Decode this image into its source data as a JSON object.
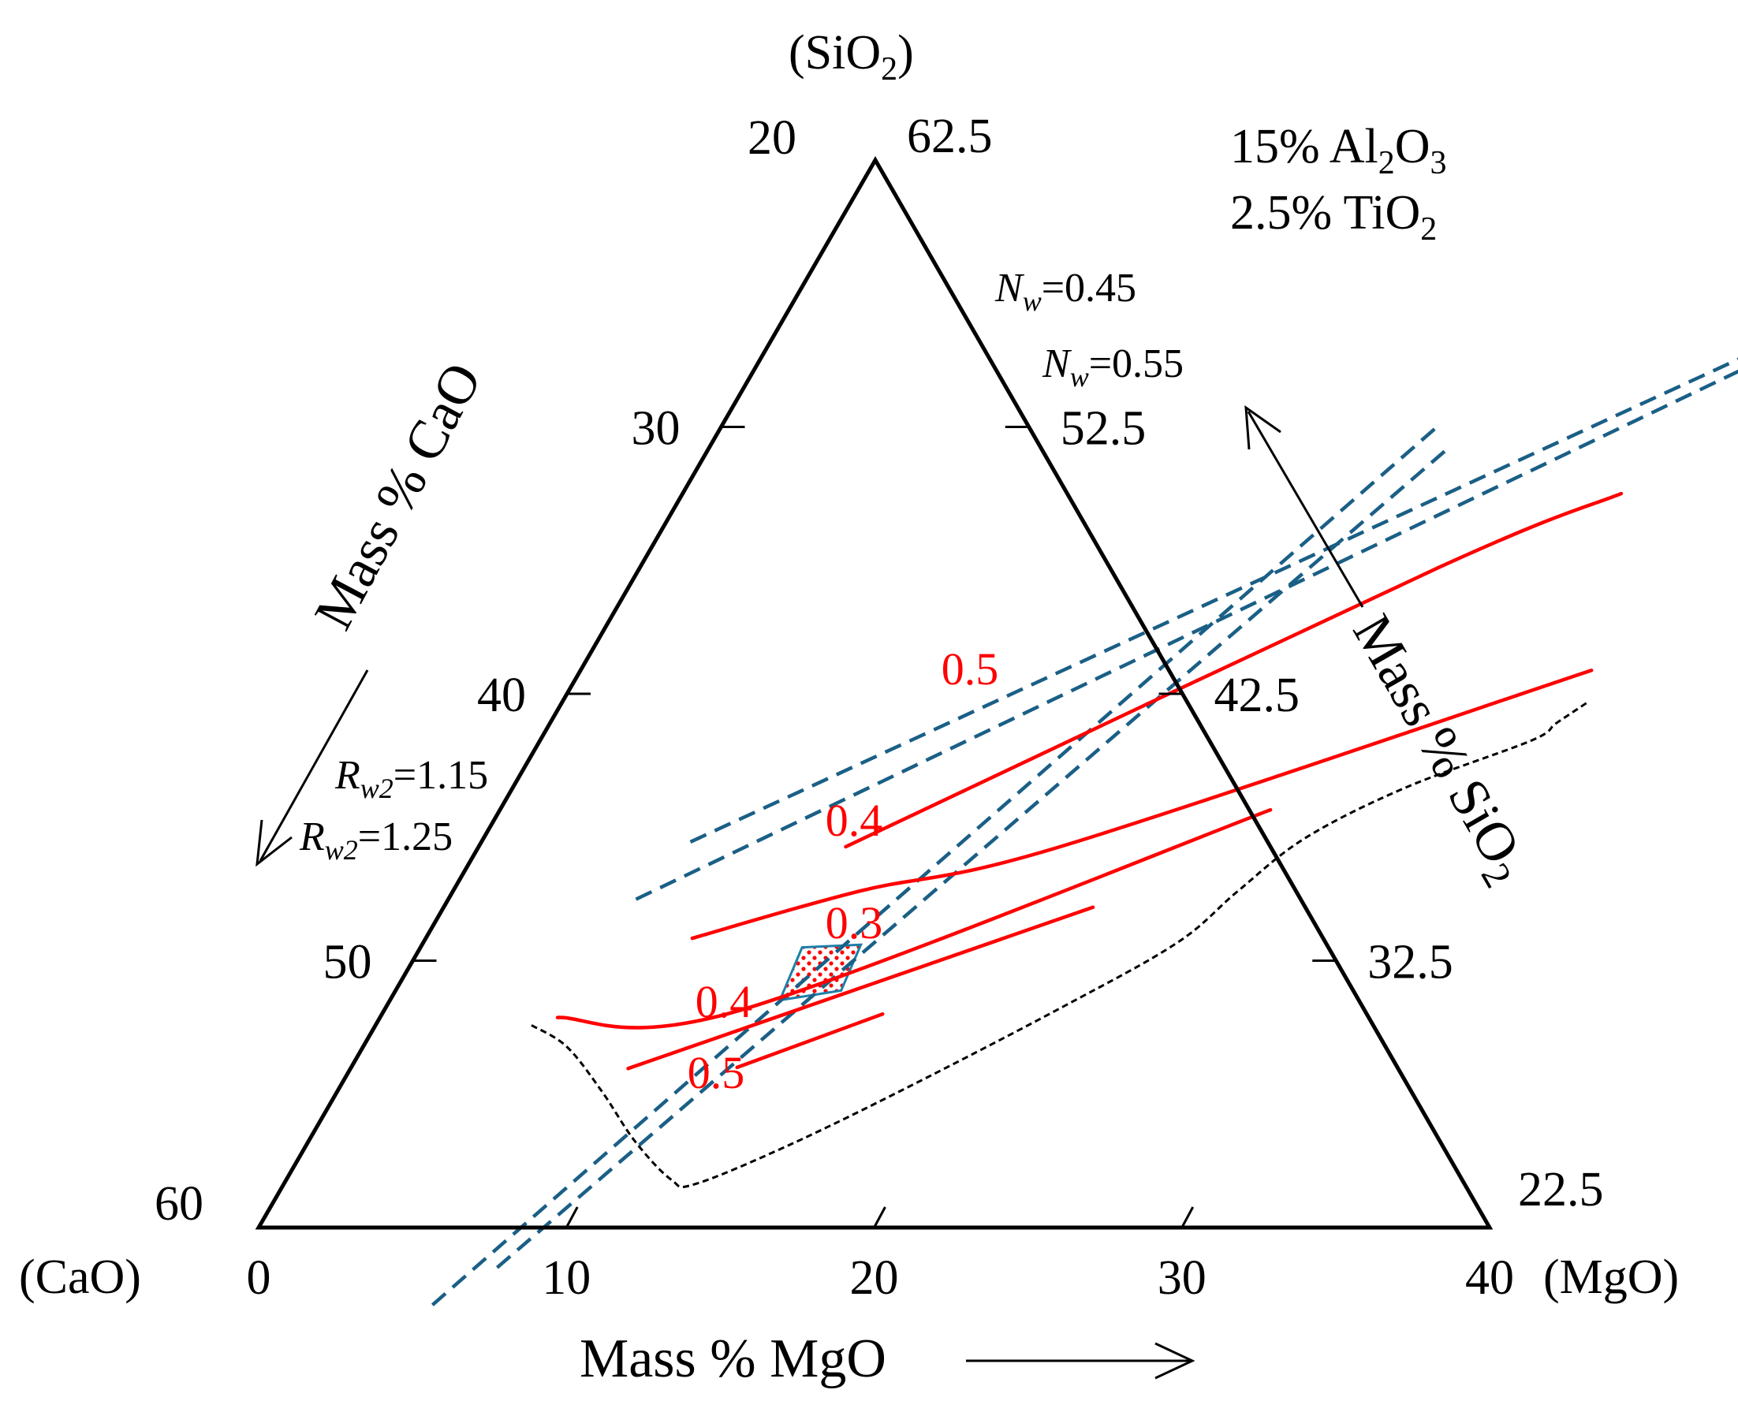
{
  "chart_data": {
    "type": "ternary",
    "title": "",
    "components": {
      "apex_top": "(SiO",
      "apex_top_sub": "2",
      "apex_left": "(CaO)",
      "apex_right": "(MgO)"
    },
    "notes": [
      {
        "pre": "15%  Al",
        "sub1": "2",
        "mid": "O",
        "sub2": "3"
      },
      {
        "pre": "2.5% TiO",
        "sub1": "2",
        "mid": "",
        "sub2": ""
      }
    ],
    "axes": {
      "bottom": {
        "title": "Mass % MgO",
        "ticks": [
          "0",
          "10",
          "20",
          "30",
          "40"
        ],
        "values": [
          0,
          10,
          20,
          30,
          40
        ]
      },
      "left": {
        "title": "Mass % CaO",
        "ticks": [
          "20",
          "30",
          "40",
          "50",
          "60"
        ],
        "values": [
          20,
          30,
          40,
          50,
          60
        ]
      },
      "right": {
        "title": "Mass % SiO",
        "title_sub": "2",
        "ticks": [
          "62.5",
          "52.5",
          "42.5",
          "32.5",
          "22.5"
        ],
        "values": [
          62.5,
          52.5,
          42.5,
          32.5,
          22.5
        ]
      }
    },
    "fixed_components": {
      "Al2O3": 15,
      "TiO2": 2.5
    },
    "isolines": [
      {
        "label": "0.5",
        "value": 0.5,
        "points": [
          [
            11.93,
            45.73
          ],
          [
            25.94,
            35.28
          ],
          [
            30.5,
            32.5
          ]
        ]
      },
      {
        "label": "0.4",
        "value": 0.4,
        "points": [
          [
            8.66,
            49.16
          ],
          [
            13.22,
            47.39
          ],
          [
            18.92,
            45.72
          ],
          [
            32.85,
            39.12
          ]
        ]
      },
      {
        "label": "0.3",
        "value": 0.3,
        "points": [
          [
            5.77,
            52.13
          ],
          [
            11.54,
            51.87
          ],
          [
            25.04,
            44.35
          ]
        ]
      },
      {
        "label": "0.4",
        "value": 0.4,
        "points": [
          [
            9.02,
            54.04
          ],
          [
            21.1,
            48.0
          ]
        ]
      },
      {
        "label": "0.5",
        "value": 0.5,
        "points": [
          [
            12.54,
            54.0
          ],
          [
            16.27,
            52.0
          ]
        ]
      }
    ],
    "boundary": {
      "name": "",
      "points": [
        [
          5.07,
          52.42
        ],
        [
          6.6,
          53.21
        ],
        [
          8.6,
          54.9
        ],
        [
          10.6,
          56.76
        ],
        [
          12.5,
          58.2
        ],
        [
          13.37,
          58.37
        ],
        [
          15.7,
          56.9
        ],
        [
          18.5,
          54.71
        ],
        [
          22.0,
          51.72
        ],
        [
          24.5,
          49.33
        ],
        [
          25.5,
          47.4
        ],
        [
          26.7,
          45.4
        ],
        [
          29.0,
          43.52
        ],
        [
          32.2,
          41.76
        ],
        [
          32.7,
          41.1
        ],
        [
          33.33,
          40.31
        ]
      ]
    },
    "reference_lines": {
      "N_w": [
        {
          "symbol": "N",
          "sub": "w",
          "value": "=0.45",
          "points": [
            [
              7.1,
              62.9
            ],
            [
              23.27,
              29.98
            ]
          ]
        },
        {
          "symbol": "N",
          "sub": "w",
          "value": "=0.55",
          "points": [
            [
              8.5,
              61.5
            ],
            [
              24.07,
              30.71
            ]
          ]
        }
      ],
      "R_w2": [
        {
          "symbol": "R",
          "sub": "w2",
          "value": "=1.15",
          "points": [
            [
              6.79,
              45.55
            ],
            [
              34.5,
              25.5
            ]
          ]
        },
        {
          "symbol": "R",
          "sub": "w2",
          "value": "=1.25",
          "points": [
            [
              6.1,
              47.7
            ],
            [
              32.3,
              27.7
            ]
          ]
        }
      ]
    },
    "optimum_region": {
      "label": "",
      "points": [
        [
          12.4,
          49.5
        ],
        [
          14.26,
          49.4
        ],
        [
          14.48,
          51.12
        ],
        [
          12.67,
          51.48
        ]
      ]
    }
  }
}
